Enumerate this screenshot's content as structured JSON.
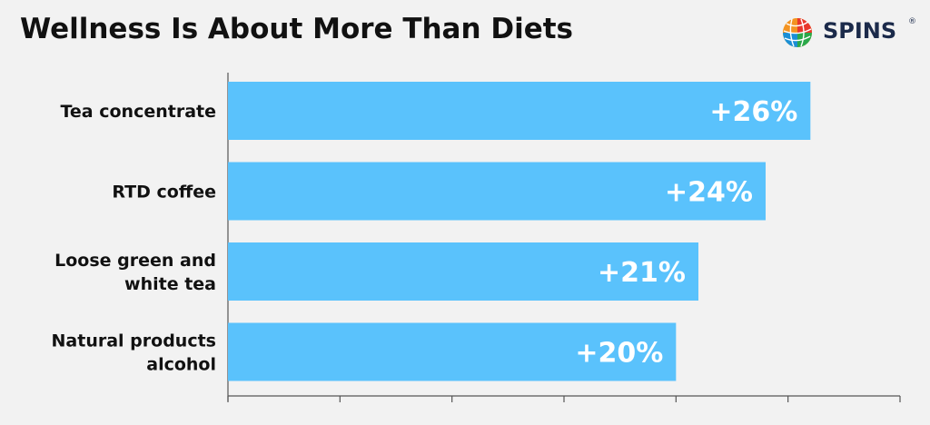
{
  "title": "Wellness Is About More Than Diets",
  "logo": {
    "text": "SPINS",
    "registered": "®",
    "icon": "globe-icon"
  },
  "colors": {
    "background": "#f2f2f2",
    "bar": "#5ac2fc",
    "bar_label": "#ffffff",
    "text": "#111111",
    "axis": "#555555"
  },
  "chart_data": {
    "type": "bar",
    "orientation": "horizontal",
    "title": "Wellness Is About More Than Diets",
    "categories": [
      [
        "Tea concentrate"
      ],
      [
        "RTD coffee"
      ],
      [
        "Loose green and",
        "white tea"
      ],
      [
        "Natural products",
        "alcohol"
      ]
    ],
    "values": [
      26,
      24,
      21,
      20
    ],
    "value_labels": [
      "+26%",
      "+24%",
      "+21%",
      "+20%"
    ],
    "xlim": [
      0,
      30
    ],
    "x_ticks": [
      0,
      5,
      10,
      15,
      20,
      25,
      30
    ],
    "tick_labels_shown": false,
    "grid": false,
    "legend": "none"
  }
}
